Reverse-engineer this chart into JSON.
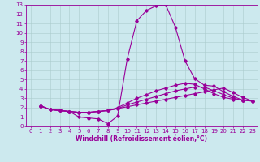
{
  "xlabel": "Windchill (Refroidissement éolien,°C)",
  "xlim": [
    -0.5,
    23.5
  ],
  "ylim": [
    0,
    13
  ],
  "xticks": [
    0,
    1,
    2,
    3,
    4,
    5,
    6,
    7,
    8,
    9,
    10,
    11,
    12,
    13,
    14,
    15,
    16,
    17,
    18,
    19,
    20,
    21,
    22,
    23
  ],
  "yticks": [
    0,
    1,
    2,
    3,
    4,
    5,
    6,
    7,
    8,
    9,
    10,
    11,
    12,
    13
  ],
  "background_color": "#cce9ee",
  "grid_color": "#aacccc",
  "line_color": "#990099",
  "marker": "D",
  "marker_size": 1.8,
  "line_width": 0.8,
  "font_size": 5.5,
  "tick_font_size": 5.0,
  "curve1_x": [
    1,
    2,
    3,
    4,
    5,
    6,
    7,
    8,
    9,
    10,
    11,
    12,
    13,
    14,
    15,
    16,
    17,
    18,
    19,
    20,
    21,
    22
  ],
  "curve1_y": [
    2.2,
    1.8,
    1.7,
    1.6,
    1.0,
    0.9,
    0.8,
    0.3,
    1.1,
    7.2,
    11.3,
    12.4,
    12.9,
    13.0,
    10.6,
    7.0,
    5.1,
    4.4,
    4.3,
    3.7,
    3.2,
    2.8
  ],
  "curve2_x": [
    1,
    2,
    3,
    4,
    5,
    6,
    7,
    8,
    9,
    10,
    11,
    12,
    13,
    14,
    15,
    16,
    17,
    18,
    19,
    20,
    21,
    22,
    23
  ],
  "curve2_y": [
    2.2,
    1.8,
    1.7,
    1.6,
    1.5,
    1.5,
    1.6,
    1.7,
    1.9,
    2.1,
    2.3,
    2.5,
    2.7,
    2.9,
    3.1,
    3.3,
    3.5,
    3.7,
    3.9,
    4.1,
    3.6,
    3.1,
    2.7
  ],
  "curve3_x": [
    1,
    2,
    3,
    4,
    5,
    6,
    7,
    8,
    9,
    10,
    11,
    12,
    13,
    14,
    15,
    16,
    17,
    18,
    19,
    20,
    21,
    22,
    23
  ],
  "curve3_y": [
    2.2,
    1.8,
    1.7,
    1.6,
    1.5,
    1.5,
    1.6,
    1.7,
    1.9,
    2.3,
    2.6,
    2.9,
    3.2,
    3.5,
    3.8,
    4.0,
    4.2,
    4.2,
    3.8,
    3.4,
    3.0,
    2.8,
    2.7
  ],
  "curve4_x": [
    1,
    2,
    3,
    4,
    5,
    6,
    7,
    8,
    9,
    10,
    11,
    12,
    13,
    14,
    15,
    16,
    17,
    18,
    19,
    20,
    21,
    22,
    23
  ],
  "curve4_y": [
    2.2,
    1.8,
    1.7,
    1.6,
    1.5,
    1.5,
    1.6,
    1.7,
    2.0,
    2.5,
    3.0,
    3.4,
    3.8,
    4.1,
    4.4,
    4.6,
    4.5,
    4.0,
    3.5,
    3.1,
    2.9,
    2.8,
    2.7
  ]
}
